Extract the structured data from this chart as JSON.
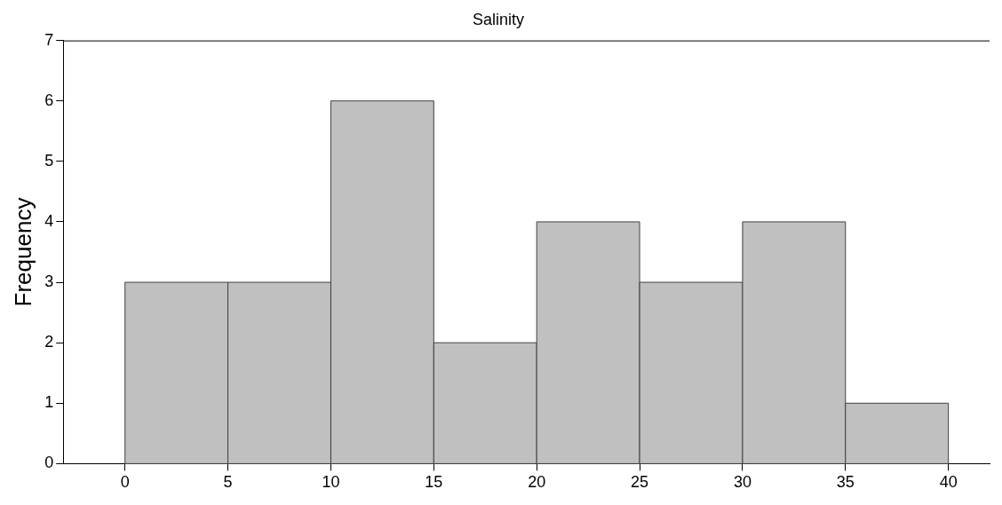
{
  "chart_data": {
    "type": "histogram",
    "title": "Salinity",
    "ylabel": "Frequency",
    "bins": [
      0,
      5,
      10,
      15,
      20,
      25,
      30,
      35,
      40
    ],
    "values": [
      3,
      3,
      6,
      2,
      4,
      3,
      4,
      1
    ],
    "color": "#c0c0c0",
    "xlim": [
      -3,
      42
    ],
    "xticks": [
      0,
      5,
      10,
      15,
      20,
      25,
      30,
      35,
      40
    ],
    "ylim": [
      0,
      7
    ],
    "yticks": [
      0,
      1,
      2,
      3,
      4,
      5,
      6,
      7
    ],
    "grid": false,
    "legend": false
  }
}
